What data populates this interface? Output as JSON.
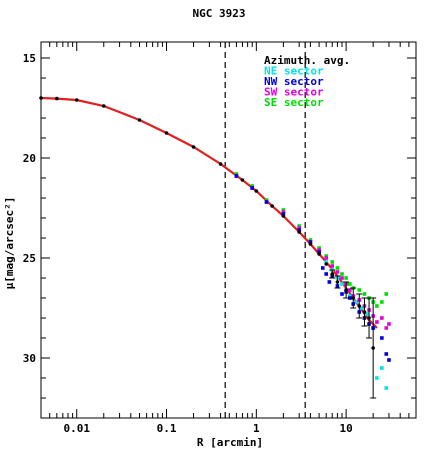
{
  "chart_data": {
    "type": "scatter",
    "title": "NGC 3923",
    "xlabel": "R [arcmin]",
    "ylabel": "μ[mag/arcsec²]",
    "xscale": "log",
    "xlim": [
      0.004,
      60
    ],
    "ylim": [
      33,
      14.2
    ],
    "y_inverted": true,
    "xticks": [
      {
        "value": 0.01,
        "label": "0.01"
      },
      {
        "value": 0.1,
        "label": "0.1"
      },
      {
        "value": 1,
        "label": "1"
      },
      {
        "value": 10,
        "label": "10"
      }
    ],
    "yticks": [
      {
        "value": 15,
        "label": "15"
      },
      {
        "value": 20,
        "label": "20"
      },
      {
        "value": 25,
        "label": "25"
      },
      {
        "value": 30,
        "label": "30"
      }
    ],
    "vlines": [
      0.45,
      3.5
    ],
    "legend": {
      "placement": "top-right",
      "entries": [
        {
          "label": "Azimuth. avg.",
          "color": "#000000"
        },
        {
          "label": "NE sector",
          "color": "#00e5e5"
        },
        {
          "label": "NW sector",
          "color": "#0000e0"
        },
        {
          "label": "SW sector",
          "color": "#e000e0"
        },
        {
          "label": "SE sector",
          "color": "#00dd00"
        }
      ]
    },
    "model_color": "#e02020",
    "series": [
      {
        "name": "Azimuth. avg.",
        "color": "#000000",
        "x": [
          0.004,
          0.006,
          0.01,
          0.02,
          0.05,
          0.1,
          0.2,
          0.4,
          0.7,
          1.0,
          1.5,
          2.0,
          3.0,
          4.0,
          5.0,
          6.0,
          7.0,
          8.0,
          10,
          12,
          14,
          16,
          18,
          20
        ],
        "y": [
          17.0,
          17.03,
          17.1,
          17.4,
          18.1,
          18.75,
          19.45,
          20.3,
          21.1,
          21.65,
          22.4,
          22.9,
          23.7,
          24.3,
          24.8,
          25.3,
          25.8,
          26.2,
          26.6,
          27.0,
          27.4,
          27.7,
          28.0,
          29.5
        ],
        "yerr": [
          0,
          0,
          0,
          0,
          0,
          0,
          0,
          0,
          0,
          0,
          0,
          0,
          0,
          0,
          0,
          0,
          0.2,
          0.3,
          0.4,
          0.5,
          0.6,
          0.7,
          1.0,
          2.5
        ]
      },
      {
        "name": "NE sector",
        "color": "#00e5e5",
        "x": [
          0.6,
          0.9,
          1.3,
          2.0,
          3.0,
          4.0,
          5.0,
          6.0,
          7.0,
          8.0,
          9.0,
          10,
          11,
          12,
          13,
          15,
          17,
          20,
          22,
          25,
          28
        ],
        "y": [
          20.9,
          21.5,
          22.2,
          22.8,
          23.6,
          24.2,
          24.7,
          25.2,
          25.6,
          26.0,
          26.3,
          26.6,
          26.9,
          27.0,
          27.2,
          27.5,
          27.8,
          28.5,
          31.0,
          30.5,
          31.5
        ]
      },
      {
        "name": "NW sector",
        "color": "#0000e0",
        "x": [
          0.6,
          0.9,
          1.3,
          2.0,
          3.0,
          4.0,
          5.0,
          5.5,
          6.0,
          6.5,
          7.0,
          8.0,
          9.0,
          10,
          11,
          12,
          14,
          16,
          18,
          20,
          25,
          28,
          30
        ],
        "y": [
          20.9,
          21.5,
          22.2,
          22.8,
          23.6,
          24.2,
          24.7,
          25.5,
          25.8,
          26.2,
          25.9,
          26.4,
          26.8,
          26.7,
          27.0,
          27.3,
          27.7,
          28.0,
          28.3,
          28.5,
          29.0,
          29.8,
          30.1
        ]
      },
      {
        "name": "SW sector",
        "color": "#e000e0",
        "x": [
          0.6,
          0.9,
          1.3,
          2.0,
          3.0,
          4.0,
          5.0,
          6.0,
          7.0,
          8.0,
          9.0,
          10,
          11,
          12,
          14,
          16,
          18,
          20,
          22,
          25,
          28,
          30
        ],
        "y": [
          20.9,
          21.5,
          22.2,
          22.7,
          23.5,
          24.2,
          24.6,
          25.0,
          25.4,
          25.7,
          26.0,
          26.3,
          26.6,
          26.9,
          27.1,
          27.4,
          27.6,
          27.9,
          28.2,
          28.0,
          28.5,
          28.3
        ]
      },
      {
        "name": "SE sector",
        "color": "#00dd00",
        "x": [
          0.6,
          0.9,
          1.3,
          2.0,
          3.0,
          4.0,
          5.0,
          6.0,
          7.0,
          8.0,
          9.0,
          10,
          11,
          12,
          14,
          16,
          18,
          20,
          22,
          25,
          28
        ],
        "y": [
          20.8,
          21.4,
          22.1,
          22.6,
          23.4,
          24.1,
          24.5,
          24.9,
          25.2,
          25.5,
          25.8,
          26.0,
          26.3,
          26.5,
          26.6,
          26.8,
          27.0,
          27.2,
          27.4,
          27.2,
          26.8
        ]
      }
    ],
    "model": {
      "x": [
        0.004,
        0.006,
        0.01,
        0.02,
        0.05,
        0.1,
        0.2,
        0.4,
        0.7,
        1.0,
        1.5,
        2.0,
        3.0,
        4.0,
        5.0,
        6.0,
        8.0,
        10,
        12,
        15,
        18,
        20,
        22
      ],
      "y": [
        17.0,
        17.03,
        17.1,
        17.4,
        18.1,
        18.75,
        19.45,
        20.3,
        21.1,
        21.65,
        22.4,
        22.9,
        23.7,
        24.3,
        24.8,
        25.2,
        25.9,
        26.5,
        27.0,
        27.6,
        28.1,
        28.3,
        28.5
      ]
    }
  }
}
